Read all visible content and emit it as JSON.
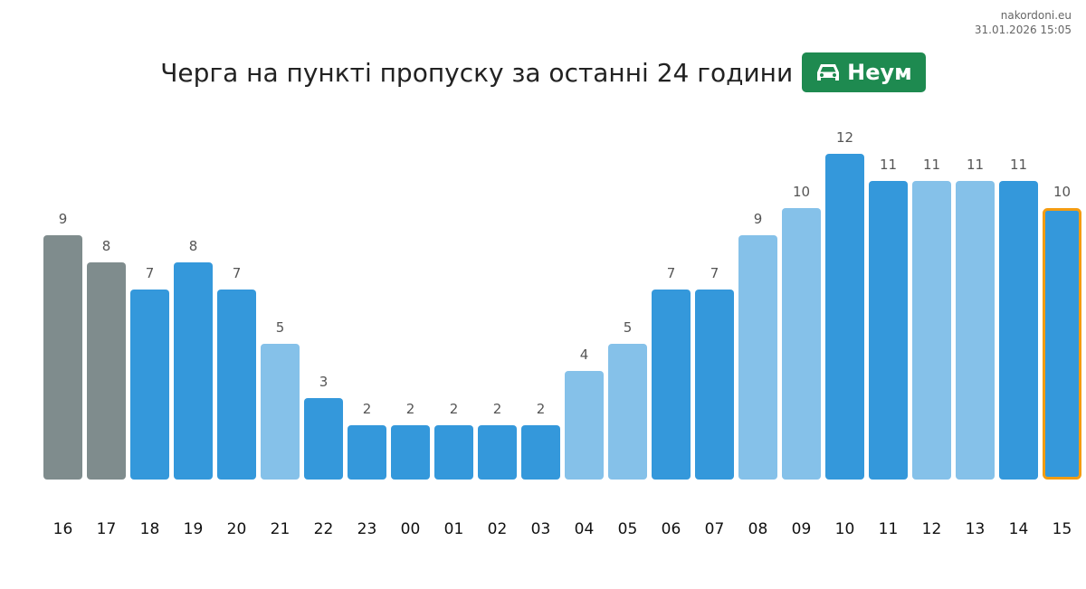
{
  "meta": {
    "site": "nakordoni.eu",
    "timestamp": "31.01.2026 15:05"
  },
  "title": "Черга на пункті пропуску за останні 24 години",
  "badge": {
    "icon": "car-icon",
    "label": "Неум",
    "color": "#1e8a50"
  },
  "colors": {
    "past": "#7f8c8d",
    "dark": "#3498db",
    "light": "#85c1e9",
    "highlight_border": "#f39c12"
  },
  "chart_data": {
    "type": "bar",
    "title": "Черга на пункті пропуску за останні 24 години",
    "categories": [
      "16",
      "17",
      "18",
      "19",
      "20",
      "21",
      "22",
      "23",
      "00",
      "01",
      "02",
      "03",
      "04",
      "05",
      "06",
      "07",
      "08",
      "09",
      "10",
      "11",
      "12",
      "13",
      "14",
      "15"
    ],
    "values": [
      9,
      8,
      7,
      8,
      7,
      5,
      3,
      2,
      2,
      2,
      2,
      2,
      4,
      5,
      7,
      7,
      9,
      10,
      12,
      11,
      11,
      11,
      11,
      10
    ],
    "bar_styles": [
      "past",
      "past",
      "dark",
      "dark",
      "dark",
      "light",
      "dark",
      "dark",
      "dark",
      "dark",
      "dark",
      "dark",
      "light",
      "light",
      "dark",
      "dark",
      "light",
      "light",
      "dark",
      "dark",
      "light",
      "light",
      "dark",
      "dark"
    ],
    "highlight_index": 23,
    "ylim": [
      0,
      12
    ],
    "xlabel": "",
    "ylabel": "",
    "grid": false
  }
}
